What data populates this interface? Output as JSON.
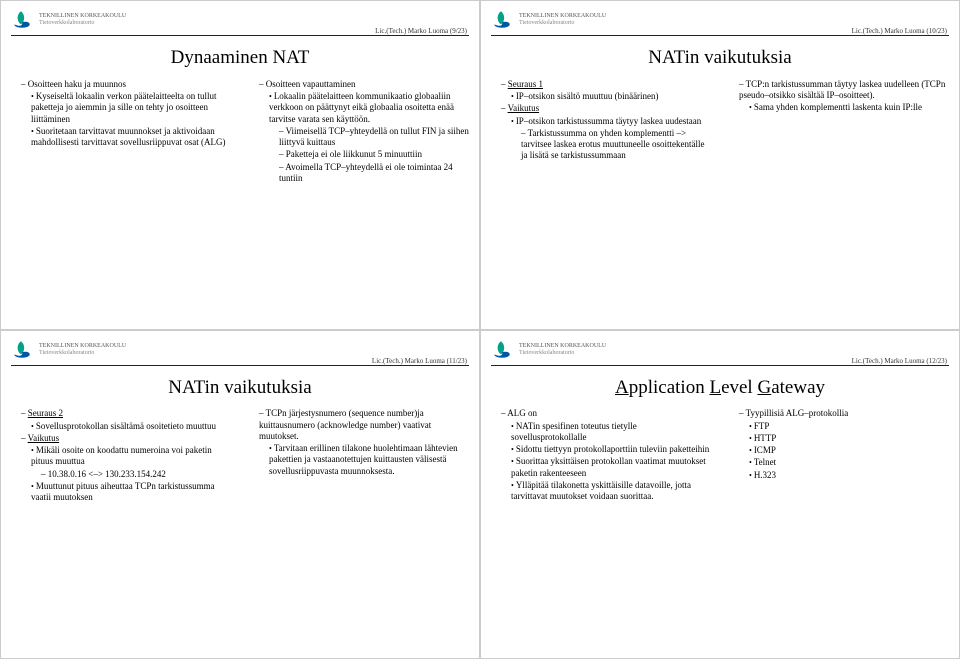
{
  "header": {
    "line1": "TEKNILLINEN KORKEAKOULU",
    "line2": "Tietoverkkolaboratorio"
  },
  "logo_colors": {
    "leaf": "#00a388",
    "swirl": "#0055a5"
  },
  "slides": [
    {
      "page_ref": "Lic.(Tech.) Marko Luoma (9/23)",
      "title": "Dynaaminen NAT",
      "left": {
        "bullets": [
          {
            "t": "Osoitteen haku ja muunnos",
            "children": [
              {
                "t": "Kyseiseltä lokaalin verkon päätelaitteelta on tullut paketteja jo aiemmin ja sille on tehty jo osoitteen liittäminen"
              },
              {
                "t": "Suoritetaan tarvittavat muunnokset ja aktivoidaan mahdollisesti tarvittavat sovellusriippuvat osat (ALG)"
              }
            ]
          }
        ]
      },
      "right": {
        "bullets": [
          {
            "t": "Osoitteen vapauttaminen",
            "children": [
              {
                "t": "Lokaalin päätelaitteen kommunikaatio globaaliin verkkoon on päättynyt eikä globaalia osoitetta enää tarvitse varata sen käyttöön.",
                "children": [
                  {
                    "t": "Viimeisellä TCP–yhteydellä on tullut FIN ja siihen liittyvä kuittaus"
                  },
                  {
                    "t": "Paketteja ei ole liikkunut 5 minuuttiin"
                  },
                  {
                    "t": "Avoimella TCP–yhteydellä ei ole toimintaa 24 tuntiin"
                  }
                ]
              }
            ]
          }
        ]
      }
    },
    {
      "page_ref": "Lic.(Tech.) Marko Luoma (10/23)",
      "title": "NATin vaikutuksia",
      "left": {
        "bullets": [
          {
            "t": "Seuraus 1",
            "under": true,
            "children": [
              {
                "t": "IP–otsikon sisältö muuttuu (binäärinen)"
              }
            ]
          },
          {
            "t": "Vaikutus",
            "under": true,
            "children": [
              {
                "t": "IP–otsikon tarkistussumma täytyy laskea uudestaan",
                "children": [
                  {
                    "t": "Tarkistussumma on yhden komplementti –> tarvitsee laskea erotus muuttuneelle osoittekentälle ja lisätä se tarkistussummaan"
                  }
                ]
              }
            ]
          }
        ]
      },
      "right": {
        "bullets": [
          {
            "t": "TCP:n tarkistussumman täytyy laskea uudelleen (TCPn pseudo–otsikko sisältää IP–osoitteet).",
            "children": [
              {
                "t": "Sama yhden komplementti laskenta kuin IP:lle"
              }
            ]
          }
        ]
      }
    },
    {
      "page_ref": "Lic.(Tech.) Marko Luoma (11/23)",
      "title": "NATin vaikutuksia",
      "left": {
        "bullets": [
          {
            "t": "Seuraus 2",
            "under": true,
            "children": [
              {
                "t": "Sovellusprotokollan sisältämä osoitetieto muuttuu"
              }
            ]
          },
          {
            "t": "Vaikutus",
            "under": true,
            "children": [
              {
                "t": "Mikäli osoite on koodattu numeroina voi paketin pituus muuttua",
                "children": [
                  {
                    "t": "10.38.0.16 <–> 130.233.154.242"
                  }
                ]
              },
              {
                "t": "Muuttunut pituus aiheuttaa TCPn tarkistussumma vaatii muutoksen"
              }
            ]
          }
        ]
      },
      "right": {
        "bullets": [
          {
            "t": "TCPn järjestysnumero (sequence number)ja kuittausnumero (acknowledge number) vaativat muutokset.",
            "children": [
              {
                "t": "Tarvitaan erillinen tilakone huolehtimaan lähtevien pakettien ja vastaanotettujen kuittausten välisestä sovellusriippuvasta muunnoksesta."
              }
            ]
          }
        ]
      }
    },
    {
      "page_ref": "Lic.(Tech.) Marko Luoma (12/23)",
      "title_html": "ALG",
      "left": {
        "bullets": [
          {
            "t": "ALG on",
            "children": [
              {
                "t": "NATin spesifinen toteutus tietylle sovellusprotokollalle"
              },
              {
                "t": "Sidottu tiettyyn protokollaporttiin tuleviin paketteihin"
              },
              {
                "t": "Suorittaa yksittäisen protokollan vaatimat muutokset paketin rakenteeseen"
              },
              {
                "t": "Ylläpitää tilakonetta yskittäisille datavoille, jotta tarvittavat muutokset voidaan suorittaa."
              }
            ]
          }
        ]
      },
      "right": {
        "bullets": [
          {
            "t": "Tyypillisiä ALG–protokollia",
            "children": [
              {
                "t": "FTP"
              },
              {
                "t": "HTTP"
              },
              {
                "t": "ICMP"
              },
              {
                "t": "Telnet"
              },
              {
                "t": "H.323"
              }
            ]
          }
        ]
      }
    }
  ]
}
